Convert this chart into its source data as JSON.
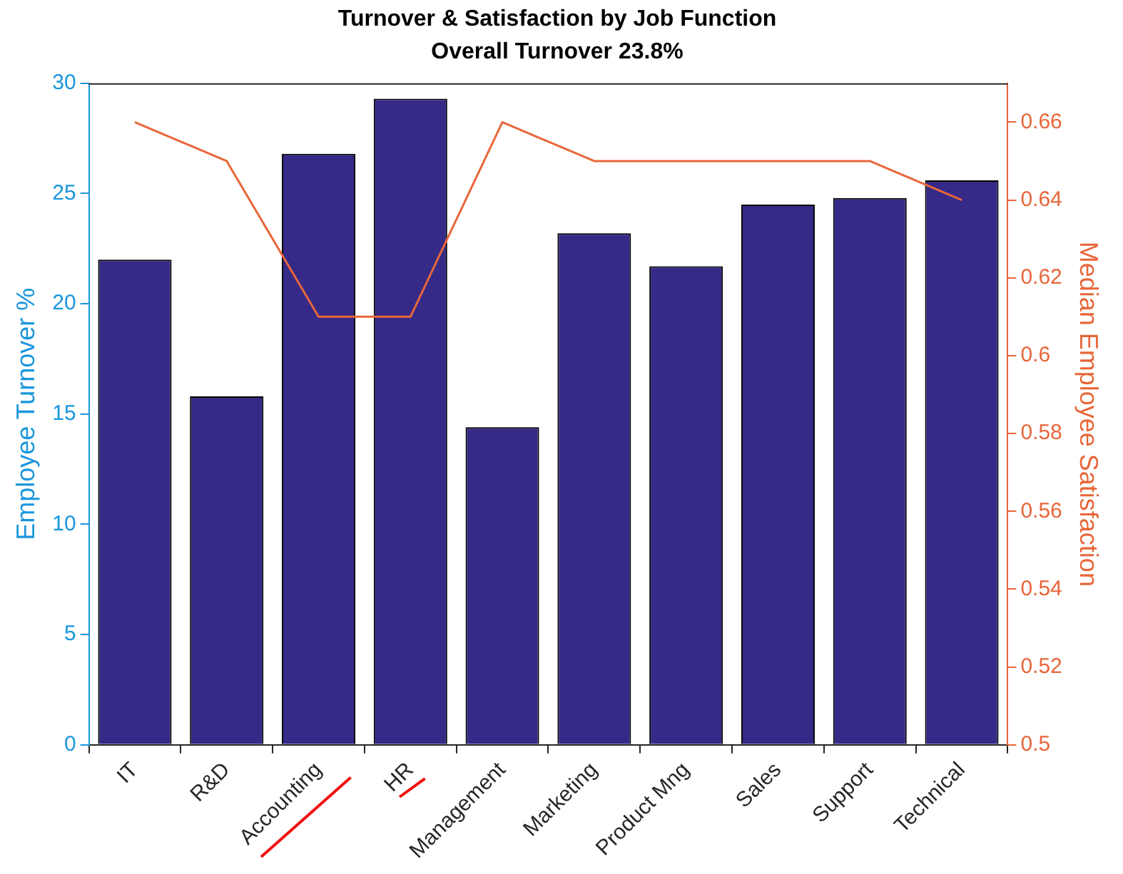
{
  "chart_data": {
    "type": "bar",
    "title": "Turnover & Satisfaction by Job Function",
    "subtitle": "Overall Turnover 23.8%",
    "ylabel": "Employee Turnover %",
    "y2label": "Median Employee Satisfaction",
    "categories": [
      "IT",
      "R&D",
      "Accounting",
      "HR",
      "Management",
      "Marketing",
      "Product Mng",
      "Sales",
      "Support",
      "Technical"
    ],
    "series": [
      {
        "color": "#352a87",
        "values": [
          22.0,
          15.8,
          26.8,
          29.3,
          14.4,
          23.2,
          21.7,
          24.5,
          24.8,
          25.6
        ]
      },
      {
        "type": "line",
        "axis": "y2",
        "color": "#e8663a",
        "values": [
          0.66,
          0.65,
          0.61,
          0.61,
          0.66,
          0.65,
          0.65,
          0.65,
          0.65,
          0.64
        ]
      }
    ],
    "ylim": [
      0,
      30
    ],
    "yticks": [
      0,
      5,
      10,
      15,
      20,
      25,
      30
    ],
    "y2lim": [
      0.5,
      0.67
    ],
    "y2ticks": [
      0.5,
      0.52,
      0.54,
      0.56,
      0.58,
      0.6,
      0.62,
      0.64,
      0.66
    ],
    "grid": false,
    "legend": false,
    "marker": "none"
  }
}
